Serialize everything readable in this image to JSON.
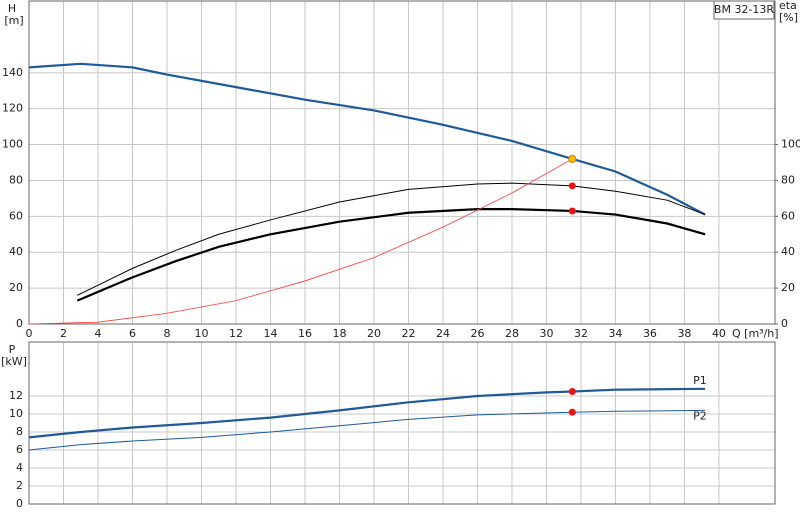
{
  "chart_data": [
    {
      "type": "line",
      "model": "BM 32-13R",
      "ylabel": "H",
      "yunit": "[m]",
      "y2label": "eta",
      "y2unit": "[%]",
      "xlabel": "Q [m³/h]",
      "xlim": [
        0,
        43.25
      ],
      "xticks": [
        0,
        2,
        4,
        6,
        8,
        10,
        12,
        14,
        16,
        18,
        20,
        22,
        24,
        26,
        28,
        30,
        32,
        34,
        36,
        38,
        40
      ],
      "ylim": [
        0,
        180
      ],
      "yticks": [
        0,
        20,
        40,
        60,
        80,
        100,
        120,
        140
      ],
      "y2lim": [
        0,
        180
      ],
      "y2ticks": [
        0,
        20,
        40,
        60,
        80,
        100
      ],
      "grid": true,
      "series": [
        {
          "color": "#1f5a99",
          "width": 2.2,
          "x": [
            0,
            3,
            6,
            8,
            12,
            16,
            20,
            24,
            28,
            31.5,
            34,
            37,
            39.2
          ],
          "values": [
            143,
            145,
            143,
            139,
            132,
            125,
            119,
            111,
            102,
            92,
            85,
            72,
            61
          ]
        },
        {
          "color": "#000000",
          "width": 2.2,
          "axis": "y2",
          "x": [
            2.8,
            6,
            8.5,
            11,
            14,
            18,
            22,
            26,
            28,
            31.5,
            34,
            37,
            39.2
          ],
          "values": [
            13,
            26,
            35,
            43,
            50,
            57,
            62,
            64,
            64,
            63,
            61,
            56,
            50
          ]
        },
        {
          "color": "#000000",
          "width": 1,
          "axis": "y2",
          "x": [
            2.8,
            6,
            8.5,
            11,
            14,
            18,
            22,
            26,
            28,
            31.5,
            34,
            37,
            39.2
          ],
          "values": [
            16,
            31,
            41,
            50,
            58,
            68,
            75,
            78,
            78.5,
            77,
            74,
            69,
            61
          ]
        },
        {
          "color": "#ff3b3b",
          "width": 0.8,
          "x": [
            0,
            4,
            8,
            12,
            16,
            20,
            24,
            28,
            31.5
          ],
          "values": [
            0,
            1,
            6,
            13,
            24,
            37,
            54,
            73,
            92
          ]
        }
      ],
      "points": [
        {
          "x": 31.5,
          "y": 92,
          "color": "#ffc000"
        },
        {
          "x": 31.5,
          "y": 77,
          "color": "#ee1111"
        },
        {
          "x": 31.5,
          "y": 63,
          "color": "#ee1111"
        }
      ]
    },
    {
      "type": "line",
      "ylabel": "P",
      "yunit": "[kW]",
      "xlim": [
        0,
        43.25
      ],
      "xticks": [
        0,
        2,
        4,
        6,
        8,
        10,
        12,
        14,
        16,
        18,
        20,
        22,
        24,
        26,
        28,
        30,
        32,
        34,
        36,
        38,
        40
      ],
      "ylim": [
        0,
        18
      ],
      "yticks": [
        0,
        2,
        4,
        6,
        8,
        10,
        12
      ],
      "grid": true,
      "series": [
        {
          "name": "P1",
          "color": "#1f5a99",
          "width": 2.2,
          "x": [
            0,
            3,
            6,
            10,
            14,
            18,
            22,
            26,
            30,
            31.5,
            34,
            39.2
          ],
          "values": [
            7.4,
            8,
            8.5,
            9,
            9.6,
            10.4,
            11.3,
            12,
            12.4,
            12.5,
            12.7,
            12.8
          ]
        },
        {
          "name": "P2",
          "color": "#1f5a99",
          "width": 1,
          "x": [
            0,
            3,
            6,
            10,
            14,
            18,
            22,
            26,
            31.5,
            34,
            39.2
          ],
          "values": [
            6,
            6.6,
            7,
            7.4,
            8,
            8.7,
            9.4,
            9.9,
            10.2,
            10.3,
            10.4
          ]
        }
      ],
      "points": [
        {
          "x": 31.5,
          "y": 12.5,
          "color": "#ee1111"
        },
        {
          "x": 31.5,
          "y": 10.2,
          "color": "#ee1111"
        }
      ]
    }
  ]
}
